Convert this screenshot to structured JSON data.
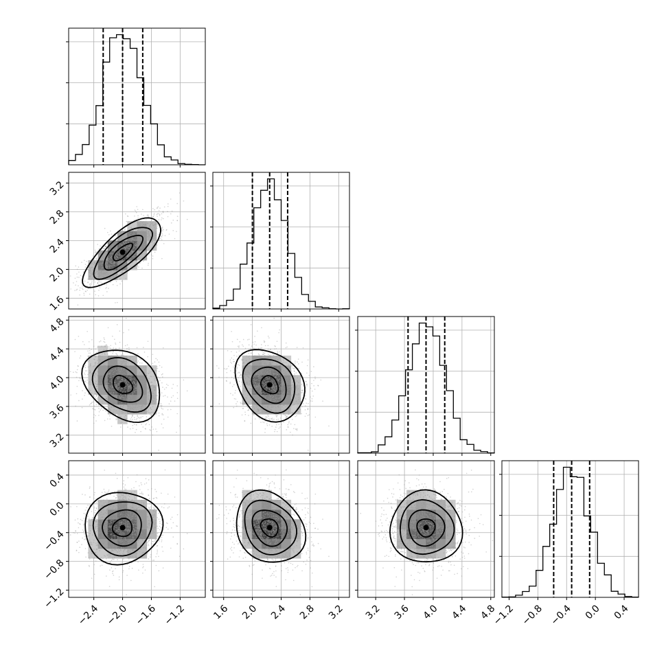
{
  "chart_data": {
    "type": "corner",
    "grid": true,
    "parameters": [
      {
        "mean": -2.0,
        "sd": 0.27,
        "range": [
          -2.75,
          -0.85
        ],
        "ticks": [
          -2.4,
          -2.0,
          -1.6,
          -1.2
        ],
        "tick_labels": [
          "−2.4",
          "−2.0",
          "−1.6",
          "−1.2"
        ],
        "quantiles": [
          -2.27,
          -2.0,
          -1.72
        ]
      },
      {
        "mean": 2.24,
        "sd": 0.24,
        "range": [
          1.45,
          3.35
        ],
        "ticks": [
          1.6,
          2.0,
          2.4,
          2.8,
          3.2
        ],
        "tick_labels": [
          "1.6",
          "2.0",
          "2.4",
          "2.8",
          "3.2"
        ],
        "quantiles": [
          2.0,
          2.24,
          2.49
        ]
      },
      {
        "mean": 3.9,
        "sd": 0.25,
        "range": [
          2.95,
          4.85
        ],
        "ticks": [
          3.2,
          3.6,
          4.0,
          4.4,
          4.8
        ],
        "tick_labels": [
          "3.2",
          "3.6",
          "4.0",
          "4.4",
          "4.8"
        ],
        "quantiles": [
          3.65,
          3.9,
          4.16
        ]
      },
      {
        "mean": -0.33,
        "sd": 0.25,
        "range": [
          -1.3,
          0.6
        ],
        "ticks": [
          -1.2,
          -0.8,
          -0.4,
          0.0,
          0.4
        ],
        "tick_labels": [
          "−1.2",
          "−0.8",
          "−0.4",
          "0.0",
          "0.4"
        ],
        "quantiles": [
          -0.58,
          -0.33,
          -0.08
        ]
      }
    ],
    "correlations": [
      [
        1,
        0.75,
        -0.3,
        0.05
      ],
      [
        0.75,
        1,
        -0.25,
        -0.2
      ],
      [
        -0.3,
        -0.25,
        1,
        -0.02
      ],
      [
        0.05,
        -0.2,
        -0.02,
        1
      ]
    ],
    "contour_levels": [
      0.5,
      1.0,
      1.5,
      2.0
    ],
    "histogram_bins": 20
  }
}
